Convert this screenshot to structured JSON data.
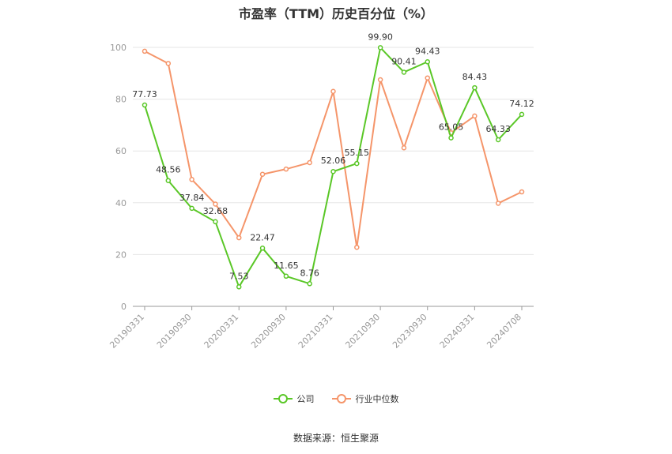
{
  "chart_data": {
    "type": "line",
    "title": "市盈率（TTM）历史百分位（%）",
    "xlabel": "",
    "ylabel": "",
    "ylim": [
      0,
      100
    ],
    "yticks": [
      0,
      20,
      40,
      60,
      80,
      100
    ],
    "x": [
      "20190331",
      "20190630",
      "20190930",
      "20191231",
      "20200331",
      "20200630",
      "20200930",
      "20201231",
      "20210331",
      "20210630",
      "20210930",
      "20220630",
      "20230930",
      "20231231",
      "20240331",
      "20240630",
      "20240708"
    ],
    "xtick_labels": [
      "20190331",
      "20190930",
      "20200331",
      "20200930",
      "20210331",
      "20210930",
      "20230930",
      "20240331",
      "20240708"
    ],
    "series": [
      {
        "name": "公司",
        "color": "#5ac727",
        "values": [
          77.73,
          48.56,
          37.84,
          32.68,
          7.53,
          22.47,
          11.65,
          8.76,
          52.06,
          55.15,
          99.9,
          90.41,
          94.43,
          65.05,
          84.43,
          64.33,
          74.12
        ],
        "labels": [
          "77.73",
          "48.56",
          "37.84",
          "32.68",
          "7.53",
          "22.47",
          "11.65",
          "8.76",
          "52.06",
          "55.15",
          "99.90",
          "90.41",
          "94.43",
          "65.05",
          "84.43",
          "64.33",
          "74.12"
        ]
      },
      {
        "name": "行业中位数",
        "color": "#f5956a",
        "values": [
          98.5,
          93.8,
          49.0,
          39.5,
          26.5,
          51.0,
          53.0,
          55.5,
          83.0,
          22.8,
          87.5,
          61.2,
          88.2,
          67.0,
          73.5,
          39.8,
          44.2
        ]
      }
    ],
    "grid": true,
    "legend_position": "bottom-center"
  },
  "source_text": "数据来源：恒生聚源"
}
